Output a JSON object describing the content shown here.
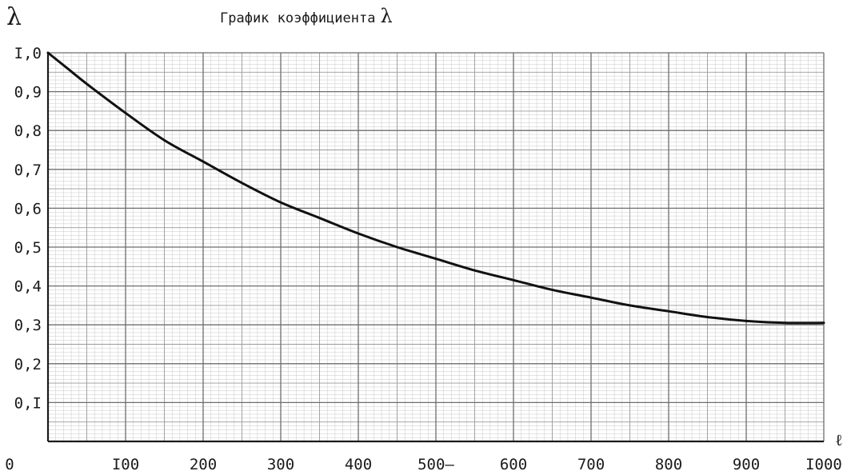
{
  "chart_data": {
    "type": "line",
    "title": "График коэффициента",
    "title_symbol": "λ",
    "ylabel": "λ",
    "xlabel": "ℓ",
    "xlim": [
      0,
      1000
    ],
    "ylim": [
      0,
      1.0
    ],
    "grid": "millimetre paper",
    "x_tick_labels": [
      "0",
      "I00",
      "200",
      "300",
      "400",
      "500—",
      "600",
      "700",
      "800",
      "900",
      "I000"
    ],
    "y_tick_labels": [
      "0,I",
      "0,2",
      "0,3",
      "0,4",
      "0,5",
      "0,6",
      "0,7",
      "0,8",
      "0,9",
      "I,0"
    ],
    "series": [
      {
        "x": [
          0,
          25,
          50,
          100,
          150,
          200,
          250,
          300,
          350,
          400,
          450,
          500,
          550,
          600,
          650,
          700,
          750,
          800,
          850,
          900,
          950,
          1000
        ],
        "y": [
          1.0,
          0.96,
          0.92,
          0.845,
          0.775,
          0.72,
          0.665,
          0.615,
          0.575,
          0.535,
          0.5,
          0.47,
          0.44,
          0.415,
          0.39,
          0.37,
          0.35,
          0.335,
          0.32,
          0.31,
          0.305,
          0.305
        ]
      }
    ]
  }
}
